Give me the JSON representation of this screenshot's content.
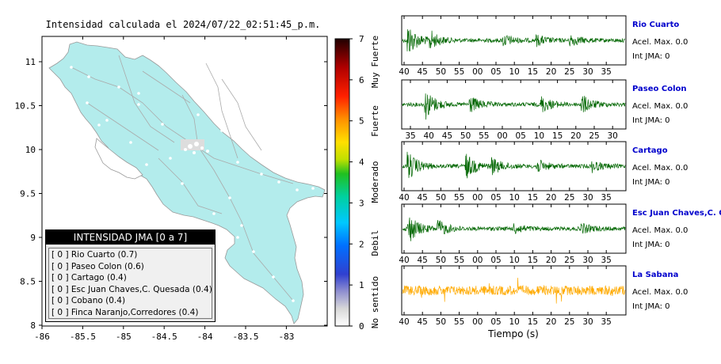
{
  "title": "Intensidad calculada el 2024/07/22_02:51:45_p.m.",
  "map": {
    "x_ticks": [
      "-86",
      "-85.5",
      "-85",
      "-84.5",
      "-84",
      "-83.5",
      "-83"
    ],
    "y_ticks": [
      "11",
      "10.5",
      "10",
      "9.5",
      "9",
      "8.5",
      "8"
    ],
    "land_color": "#b3ecec"
  },
  "legend": {
    "title": "INTENSIDAD JMA [0 a 7]",
    "items": [
      {
        "value": "[ 0 ]",
        "label": "Rio Cuarto (0.7)"
      },
      {
        "value": "[ 0 ]",
        "label": "Paseo Colon (0.6)"
      },
      {
        "value": "[ 0 ]",
        "label": "Cartago (0.4)"
      },
      {
        "value": "[ 0 ]",
        "label": "Esc Juan Chaves,C. Quesada (0.4)"
      },
      {
        "value": "[ 0 ]",
        "label": "Cobano (0.4)"
      },
      {
        "value": "[ 0 ]",
        "label": "Finca Naranjo,Corredores (0.4)"
      }
    ]
  },
  "colorbar": {
    "ticks": [
      "0",
      "1",
      "2",
      "3",
      "4",
      "5",
      "6",
      "7"
    ],
    "labels": [
      "No sentido",
      "Debil",
      "Moderado",
      "Fuerte",
      "Muy Fuerte"
    ]
  },
  "stations": [
    {
      "name": "Rio Cuarto",
      "acel": "Acel. Max. 0.0",
      "int": "Int JMA: 0",
      "color": "#006600",
      "ticks": [
        "40",
        "45",
        "50",
        "55",
        "00",
        "05",
        "10",
        "15",
        "20",
        "25",
        "30",
        "35"
      ]
    },
    {
      "name": "Paseo Colon",
      "acel": "Acel. Max. 0.0",
      "int": "Int JMA: 0",
      "color": "#006600",
      "ticks": [
        "35",
        "40",
        "45",
        "50",
        "55",
        "00",
        "05",
        "10",
        "15",
        "20",
        "25",
        "30"
      ]
    },
    {
      "name": "Cartago",
      "acel": "Acel. Max. 0.0",
      "int": "Int JMA: 0",
      "color": "#006600",
      "ticks": [
        "40",
        "45",
        "50",
        "55",
        "00",
        "05",
        "10",
        "15",
        "20",
        "25",
        "30",
        "35"
      ]
    },
    {
      "name": "Esc Juan Chaves,C. Qu",
      "acel": "Acel. Max. 0.0",
      "int": "Int JMA: 0",
      "color": "#006600",
      "ticks": [
        "40",
        "45",
        "50",
        "55",
        "00",
        "05",
        "10",
        "15",
        "20",
        "25",
        "30",
        "35"
      ]
    },
    {
      "name": "La Sabana",
      "acel": "Acel. Max. 0.0",
      "int": "Int JMA: 0",
      "color": "#ffaa00",
      "ticks": [
        "40",
        "45",
        "50",
        "55",
        "00",
        "05",
        "10",
        "15",
        "20",
        "25",
        "30",
        "35"
      ]
    }
  ],
  "time_axis_label": "Tiempo (s)"
}
